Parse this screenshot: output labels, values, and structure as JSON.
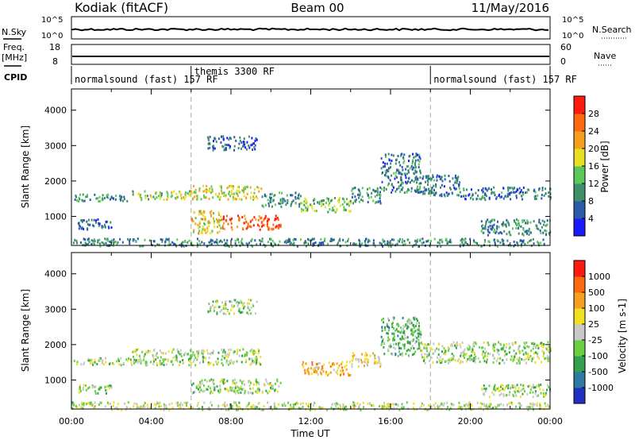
{
  "header": {
    "station": "Kodiak (fitACF)",
    "beam": "Beam 00",
    "date": "11/May/2016"
  },
  "top_panels": {
    "nsky_label": "N.Sky",
    "nsky_ticks": [
      "10^5",
      "10^0"
    ],
    "nsearch_label": "N.Search",
    "nsearch_ticks": [
      "10^5",
      "10^0"
    ],
    "freq_label": "Freq.",
    "freq_unit": "[MHz]",
    "freq_ticks": [
      "18",
      "8"
    ],
    "nave_label": "Nave",
    "nave_ticks": [
      "60",
      "0"
    ],
    "cpid_label": "CPID",
    "cpid_segments": [
      {
        "label": "normalsound (fast) 157 RF",
        "start_hour": 0
      },
      {
        "label": "themis 3300 RF",
        "start_hour": 6
      },
      {
        "label": "normalsound (fast) 157 RF",
        "start_hour": 18
      }
    ]
  },
  "chart_data": [
    {
      "type": "heatmap",
      "panel": "power",
      "ylabel": "Slant Range [km]",
      "xlim": [
        0,
        24
      ],
      "ylim": [
        180,
        4600
      ],
      "yticks": [
        "1000",
        "2000",
        "3000",
        "4000"
      ],
      "colorbar_label": "Power [dB]",
      "colorbar_ticks": [
        "28",
        "24",
        "20",
        "16",
        "12",
        "8",
        "4"
      ],
      "colorbar_colors": [
        "#1a1aff",
        "#2a5aa8",
        "#3e8f6a",
        "#5ac85a",
        "#e8e020",
        "#f5a020",
        "#ff6a10",
        "#ff1a10"
      ],
      "bands": [
        {
          "t0": 0.3,
          "t1": 2.0,
          "r0": 650,
          "r1": 950,
          "level": 0.2
        },
        {
          "t0": 0.1,
          "t1": 3.0,
          "r0": 1450,
          "r1": 1650,
          "level": 0.3
        },
        {
          "t0": 3.0,
          "t1": 6.0,
          "r0": 1500,
          "r1": 1750,
          "level": 0.5
        },
        {
          "t0": 6.0,
          "t1": 9.5,
          "r0": 1500,
          "r1": 1900,
          "level": 0.55
        },
        {
          "t0": 6.0,
          "t1": 7.5,
          "r0": 550,
          "r1": 1200,
          "level": 0.6
        },
        {
          "t0": 7.5,
          "t1": 10.5,
          "r0": 650,
          "r1": 1050,
          "level": 0.85
        },
        {
          "t0": 6.8,
          "t1": 9.3,
          "r0": 2900,
          "r1": 3300,
          "level": 0.2
        },
        {
          "t0": 9.5,
          "t1": 11.5,
          "r0": 1300,
          "r1": 1700,
          "level": 0.3
        },
        {
          "t0": 11.5,
          "t1": 14.0,
          "r0": 1150,
          "r1": 1550,
          "level": 0.45
        },
        {
          "t0": 14.0,
          "t1": 15.5,
          "r0": 1400,
          "r1": 1850,
          "level": 0.3
        },
        {
          "t0": 15.5,
          "t1": 17.5,
          "r0": 1700,
          "r1": 2800,
          "level": 0.25
        },
        {
          "t0": 17.5,
          "t1": 19.5,
          "r0": 1600,
          "r1": 2200,
          "level": 0.25
        },
        {
          "t0": 19.5,
          "t1": 24.0,
          "r0": 1500,
          "r1": 1850,
          "level": 0.25
        },
        {
          "t0": 20.5,
          "t1": 24.0,
          "r0": 500,
          "r1": 950,
          "level": 0.3
        },
        {
          "t0": 0.0,
          "t1": 24.0,
          "r0": 180,
          "r1": 400,
          "level": 0.3
        }
      ]
    },
    {
      "type": "heatmap",
      "panel": "velocity",
      "ylabel": "Slant Range [km]",
      "xlabel": "Time UT",
      "xlim": [
        0,
        24
      ],
      "ylim": [
        180,
        4600
      ],
      "xticks": [
        "00:00",
        "04:00",
        "08:00",
        "12:00",
        "16:00",
        "20:00",
        "00:00"
      ],
      "yticks": [
        "1000",
        "2000",
        "3000",
        "4000"
      ],
      "colorbar_label": "Velocity [m s-1]",
      "colorbar_ticks": [
        "1000",
        "500",
        "100",
        "25",
        "-25",
        "-100",
        "-500",
        "-1000"
      ],
      "colorbar_colors": [
        "#2030c0",
        "#2e7aa0",
        "#35a050",
        "#6ad040",
        "#c8c8c8",
        "#f0e020",
        "#f5a020",
        "#ff6a10",
        "#ff1a10"
      ],
      "bands": [
        {
          "t0": 0.1,
          "t1": 3.0,
          "r0": 1450,
          "r1": 1650,
          "level": 0.45
        },
        {
          "t0": 3.0,
          "t1": 9.5,
          "r0": 1450,
          "r1": 1900,
          "level": 0.45
        },
        {
          "t0": 6.0,
          "t1": 10.5,
          "r0": 650,
          "r1": 1050,
          "level": 0.45
        },
        {
          "t0": 0.3,
          "t1": 2.0,
          "r0": 650,
          "r1": 900,
          "level": 0.45
        },
        {
          "t0": 11.5,
          "t1": 14.0,
          "r0": 1150,
          "r1": 1550,
          "level": 0.7
        },
        {
          "t0": 14.0,
          "t1": 15.5,
          "r0": 1400,
          "r1": 1800,
          "level": 0.6
        },
        {
          "t0": 15.5,
          "t1": 17.5,
          "r0": 1700,
          "r1": 2800,
          "level": 0.35
        },
        {
          "t0": 17.5,
          "t1": 24.0,
          "r0": 1500,
          "r1": 2100,
          "level": 0.45
        },
        {
          "t0": 20.5,
          "t1": 24.0,
          "r0": 550,
          "r1": 900,
          "level": 0.45
        },
        {
          "t0": 6.8,
          "t1": 9.3,
          "r0": 2900,
          "r1": 3300,
          "level": 0.45
        },
        {
          "t0": 0.0,
          "t1": 24.0,
          "r0": 180,
          "r1": 400,
          "level": 0.5
        }
      ]
    }
  ]
}
